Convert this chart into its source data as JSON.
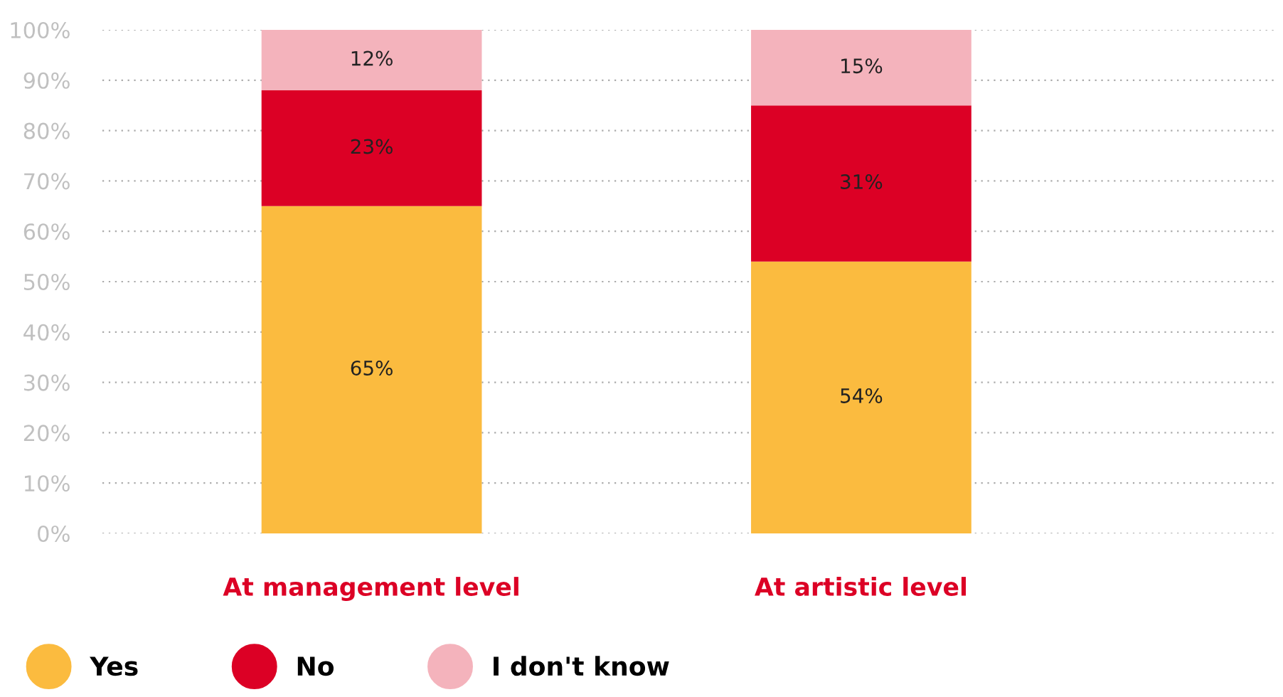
{
  "chart_data": {
    "type": "bar",
    "stacked": true,
    "categories": [
      "At management level",
      "At artistic level"
    ],
    "series": [
      {
        "name": "Yes",
        "color": "#fbbb3f",
        "values": [
          65,
          54
        ],
        "value_labels": [
          "65%",
          "54%"
        ]
      },
      {
        "name": "No",
        "color": "#dc0025",
        "values": [
          23,
          31
        ],
        "value_labels": [
          "23%",
          "31%"
        ]
      },
      {
        "name": "I don't know",
        "color": "#f4b3bc",
        "values": [
          12,
          15
        ],
        "value_labels": [
          "12%",
          "15%"
        ]
      }
    ],
    "ylim": [
      0,
      100
    ],
    "yticks": [
      {
        "value": 0,
        "label": "0%"
      },
      {
        "value": 10,
        "label": "10%"
      },
      {
        "value": 20,
        "label": "20%"
      },
      {
        "value": 30,
        "label": "30%"
      },
      {
        "value": 40,
        "label": "40%"
      },
      {
        "value": 50,
        "label": "50%"
      },
      {
        "value": 60,
        "label": "60%"
      },
      {
        "value": 70,
        "label": "70%"
      },
      {
        "value": 80,
        "label": "80%"
      },
      {
        "value": 90,
        "label": "90%"
      },
      {
        "value": 100,
        "label": "100%"
      }
    ],
    "grid": "y",
    "legend": "bottom left",
    "marker": "circle"
  }
}
